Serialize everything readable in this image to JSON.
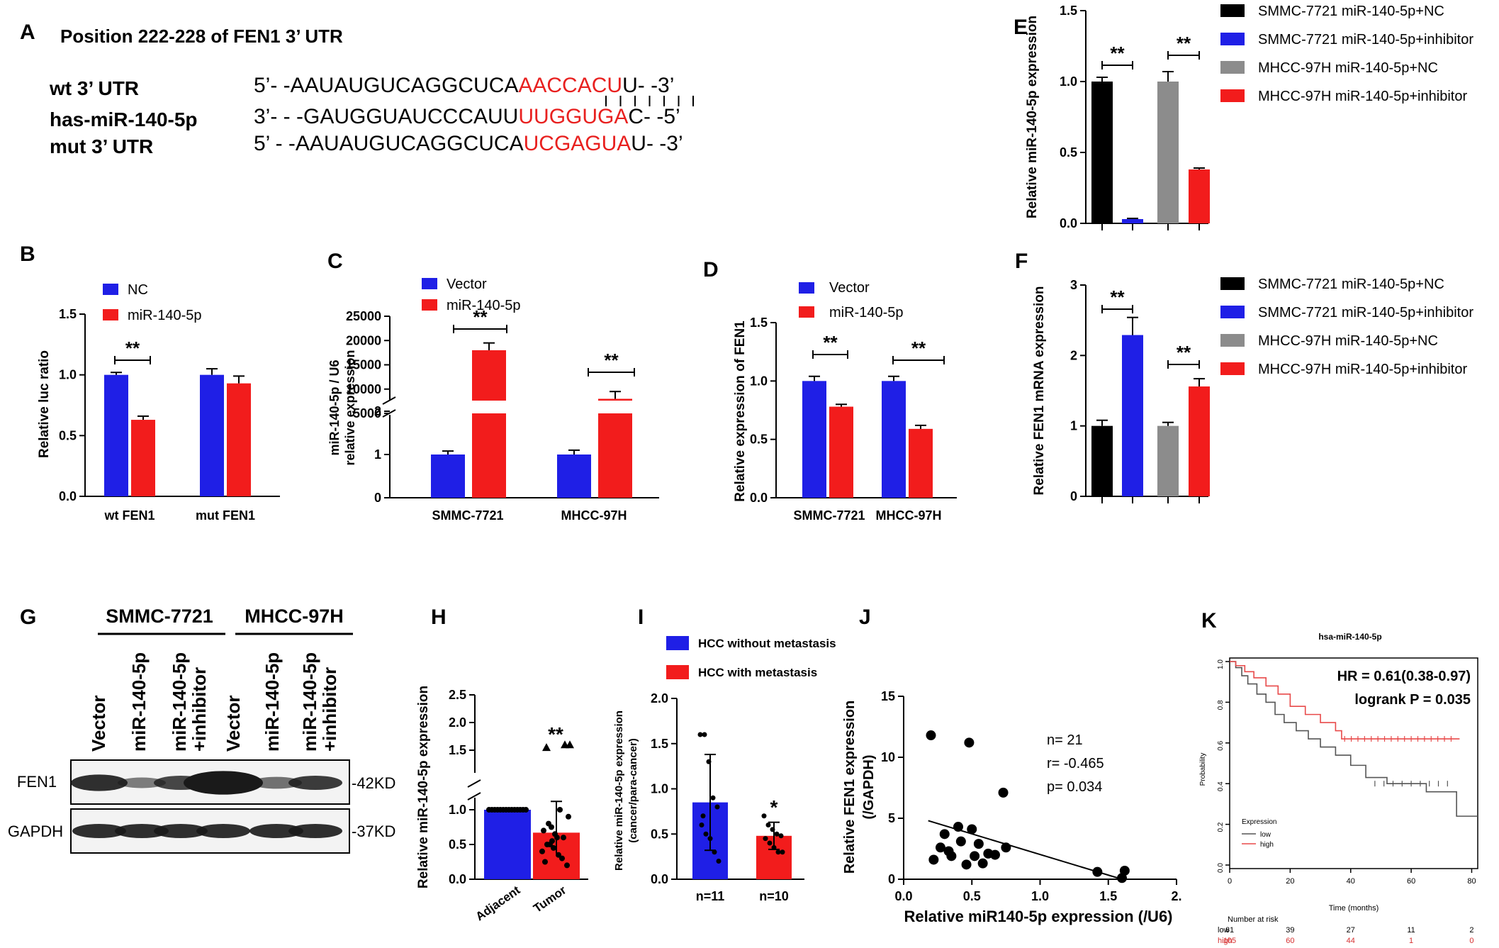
{
  "panel_letters": [
    "A",
    "B",
    "C",
    "D",
    "E",
    "F",
    "G",
    "H",
    "I",
    "J",
    "K"
  ],
  "colors": {
    "blue": "#1f1fe6",
    "red": "#f21c1c",
    "black": "#000000",
    "gray": "#8c8c8c",
    "seq_red": "#e8201f"
  },
  "panelA": {
    "title": "Position 222-228 of FEN1 3’ UTR",
    "rows": [
      {
        "label": "wt   3’ UTR",
        "prefix": "5’- -AAUAUGUCAGGCUCA",
        "highlight": "AACCACU",
        "suffix": "U- -3’"
      },
      {
        "label": "has-miR-140-5p",
        "prefix": "3’- - -GAUGGUAUCCCAUU",
        "highlight": "UUGGUGA",
        "suffix": "C- -5’"
      },
      {
        "label": "mut  3’ UTR",
        "prefix": "5’ - -AAUAUGUCAGGCUCA",
        "highlight": "UCGAGUA",
        "suffix": "U- -3’"
      }
    ]
  },
  "chart_data": [
    {
      "panel": "B",
      "type": "bar",
      "ylabel": "Relative luc ratio",
      "categories": [
        "wt FEN1",
        "mut FEN1"
      ],
      "series": [
        {
          "name": "NC",
          "values": [
            1.0,
            1.0
          ],
          "err": [
            0.02,
            0.05
          ]
        },
        {
          "name": "miR-140-5p",
          "values": [
            0.63,
            0.93
          ],
          "err": [
            0.03,
            0.06
          ]
        }
      ],
      "ylim": [
        0,
        1.5
      ],
      "yticks": [
        "0.0",
        "0.5",
        "1.0",
        "1.5"
      ],
      "annotations": [
        "**"
      ]
    },
    {
      "panel": "C",
      "type": "bar",
      "ylabel": "miR-140-5p / U6 relative expression",
      "categories": [
        "SMMC-7721",
        "MHCC-97H"
      ],
      "series": [
        {
          "name": "Vector",
          "values": [
            1.0,
            1.0
          ],
          "err": [
            0.08,
            0.1
          ]
        },
        {
          "name": "miR-140-5p",
          "values": [
            18000,
            8000
          ],
          "err": [
            1500,
            1500
          ]
        }
      ],
      "yticks_lower": [
        "0",
        "1",
        "2"
      ],
      "yticks_upper": [
        "5000",
        "10000",
        "15000",
        "20000",
        "25000"
      ],
      "annotations": [
        "**",
        "**"
      ]
    },
    {
      "panel": "D",
      "type": "bar",
      "ylabel": "Relative expression of FEN1",
      "categories": [
        "SMMC-7721",
        "MHCC-97H"
      ],
      "series": [
        {
          "name": "Vector",
          "values": [
            1.0,
            1.0
          ],
          "err": [
            0.04,
            0.04
          ]
        },
        {
          "name": "miR-140-5p",
          "values": [
            0.78,
            0.59
          ],
          "err": [
            0.02,
            0.03
          ]
        }
      ],
      "ylim": [
        0,
        1.5
      ],
      "yticks": [
        "0.0",
        "0.5",
        "1.0",
        "1.5"
      ],
      "annotations": [
        "**",
        "**"
      ]
    },
    {
      "panel": "E",
      "type": "bar",
      "ylabel": "Relative miR-140-5p expression",
      "series": [
        {
          "name": "SMMC-7721 miR-140-5p+NC",
          "value": 1.0,
          "err": 0.03
        },
        {
          "name": "SMMC-7721 miR-140-5p+inhibitor",
          "value": 0.03,
          "err": 0.005
        },
        {
          "name": "MHCC-97H miR-140-5p+NC",
          "value": 1.0,
          "err": 0.07
        },
        {
          "name": "MHCC-97H miR-140-5p+inhibitor",
          "value": 0.38,
          "err": 0.01
        }
      ],
      "ylim": [
        0,
        1.5
      ],
      "yticks": [
        "0.0",
        "0.5",
        "1.0",
        "1.5"
      ],
      "annotations": [
        "**",
        "**"
      ]
    },
    {
      "panel": "F",
      "type": "bar",
      "ylabel": "Relative FEN1 mRNA expression",
      "series": [
        {
          "name": "SMMC-7721 miR-140-5p+NC",
          "value": 1.0,
          "err": 0.08
        },
        {
          "name": "SMMC-7721 miR-140-5p+inhibitor",
          "value": 2.29,
          "err": 0.25
        },
        {
          "name": "MHCC-97H miR-140-5p+NC",
          "value": 1.0,
          "err": 0.05
        },
        {
          "name": "MHCC-97H miR-140-5p+inhibitor",
          "value": 1.56,
          "err": 0.11
        }
      ],
      "ylim": [
        0,
        3
      ],
      "yticks": [
        "0",
        "1",
        "2",
        "3"
      ],
      "annotations": [
        "**",
        "**"
      ]
    },
    {
      "panel": "H",
      "type": "bar",
      "ylabel": "Relative miR-140-5p expression",
      "categories": [
        "Adjacent",
        "Tumor"
      ],
      "values": [
        1.0,
        0.67
      ],
      "err": [
        0.0,
        0.45
      ],
      "points_tumor": [
        0.4,
        0.5,
        0.55,
        0.6,
        0.3,
        0.2,
        0.7,
        0.8,
        0.45,
        0.35,
        0.6,
        0.9,
        0.25,
        0.5,
        0.65,
        1.0,
        1.6,
        1.6,
        1.55,
        0.75
      ],
      "yticks_lower": [
        "0.0",
        "0.5",
        "1.0"
      ],
      "yticks_upper": [
        "1.5",
        "2.0",
        "2.5"
      ],
      "annotations": [
        "**"
      ]
    },
    {
      "panel": "I",
      "type": "bar",
      "ylabel": "Relative miR-140-5p expression (cancer/para-cancer)",
      "categories": [
        "n=11",
        "n=10"
      ],
      "series_names": [
        "HCC without metastasis",
        "HCC with metastasis"
      ],
      "values": [
        0.85,
        0.48
      ],
      "err": [
        0.53,
        0.15
      ],
      "points": [
        [
          1.6,
          1.6,
          1.3,
          0.9,
          0.8,
          0.6,
          0.5,
          0.45,
          0.3,
          0.2,
          0.7
        ],
        [
          0.7,
          0.6,
          0.55,
          0.5,
          0.48,
          0.45,
          0.4,
          0.35,
          0.3,
          0.3
        ]
      ],
      "ylim": [
        0,
        2.0
      ],
      "yticks": [
        "0.0",
        "0.5",
        "1.0",
        "1.5",
        "2.0"
      ],
      "annotations": [
        "*"
      ]
    },
    {
      "panel": "J",
      "type": "scatter",
      "xlabel": "Relative miR140-5p expression (/U6)",
      "ylabel": "Relative FEN1 expression (/GAPDH)",
      "x": [
        0.2,
        0.48,
        0.73,
        0.3,
        0.27,
        0.4,
        0.42,
        0.5,
        0.46,
        0.55,
        0.62,
        0.67,
        0.35,
        0.52,
        0.58,
        0.22,
        0.75,
        0.33,
        1.42,
        1.62,
        1.6
      ],
      "y": [
        11.8,
        11.2,
        7.1,
        3.7,
        2.6,
        4.3,
        3.1,
        4.1,
        1.2,
        2.9,
        2.1,
        2.0,
        1.9,
        1.9,
        1.3,
        1.6,
        2.6,
        2.3,
        0.6,
        0.7,
        0.1
      ],
      "xlim": [
        0,
        2
      ],
      "ylim": [
        0,
        15
      ],
      "xticks": [
        "0.0",
        "0.5",
        "1.0",
        "1.5",
        "2."
      ],
      "yticks": [
        "0",
        "5",
        "10",
        "15"
      ],
      "stats": [
        "n= 21",
        "r= -0.465",
        "p= 0.034"
      ]
    },
    {
      "panel": "K",
      "type": "line",
      "title": "hsa-miR-140-5p",
      "xlabel": "Time (months)",
      "ylabel": "Probability",
      "xticks": [
        "0",
        "20",
        "40",
        "60",
        "80"
      ],
      "yticks": [
        "0.0",
        "0.2",
        "0.4",
        "0.6",
        "0.8",
        "1.0"
      ],
      "series": [
        {
          "name": "low",
          "color": "#555555"
        },
        {
          "name": "high",
          "color": "#e84a4a"
        }
      ],
      "hr": "HR = 0.61(0.38-0.97)",
      "logrank": "logrank P = 0.035",
      "legend_title": "Expression",
      "risk_title": "Number at risk",
      "risk": [
        {
          "name": "low",
          "values": [
            "61",
            "39",
            "27",
            "11",
            "2"
          ]
        },
        {
          "name": "high",
          "values": [
            "105",
            "60",
            "44",
            "1",
            "0"
          ]
        }
      ]
    }
  ],
  "panelG": {
    "groups": [
      "SMMC-7721",
      "MHCC-97H"
    ],
    "lanes": [
      "Vector",
      "miR-140-5p",
      "miR-140-5p\n+inhibitor",
      "Vector",
      "miR-140-5p",
      "miR-140-5p\n+inhibitor"
    ],
    "proteins": [
      "FEN1",
      "GAPDH"
    ],
    "sizes": [
      "-42KD",
      "-37KD"
    ]
  }
}
